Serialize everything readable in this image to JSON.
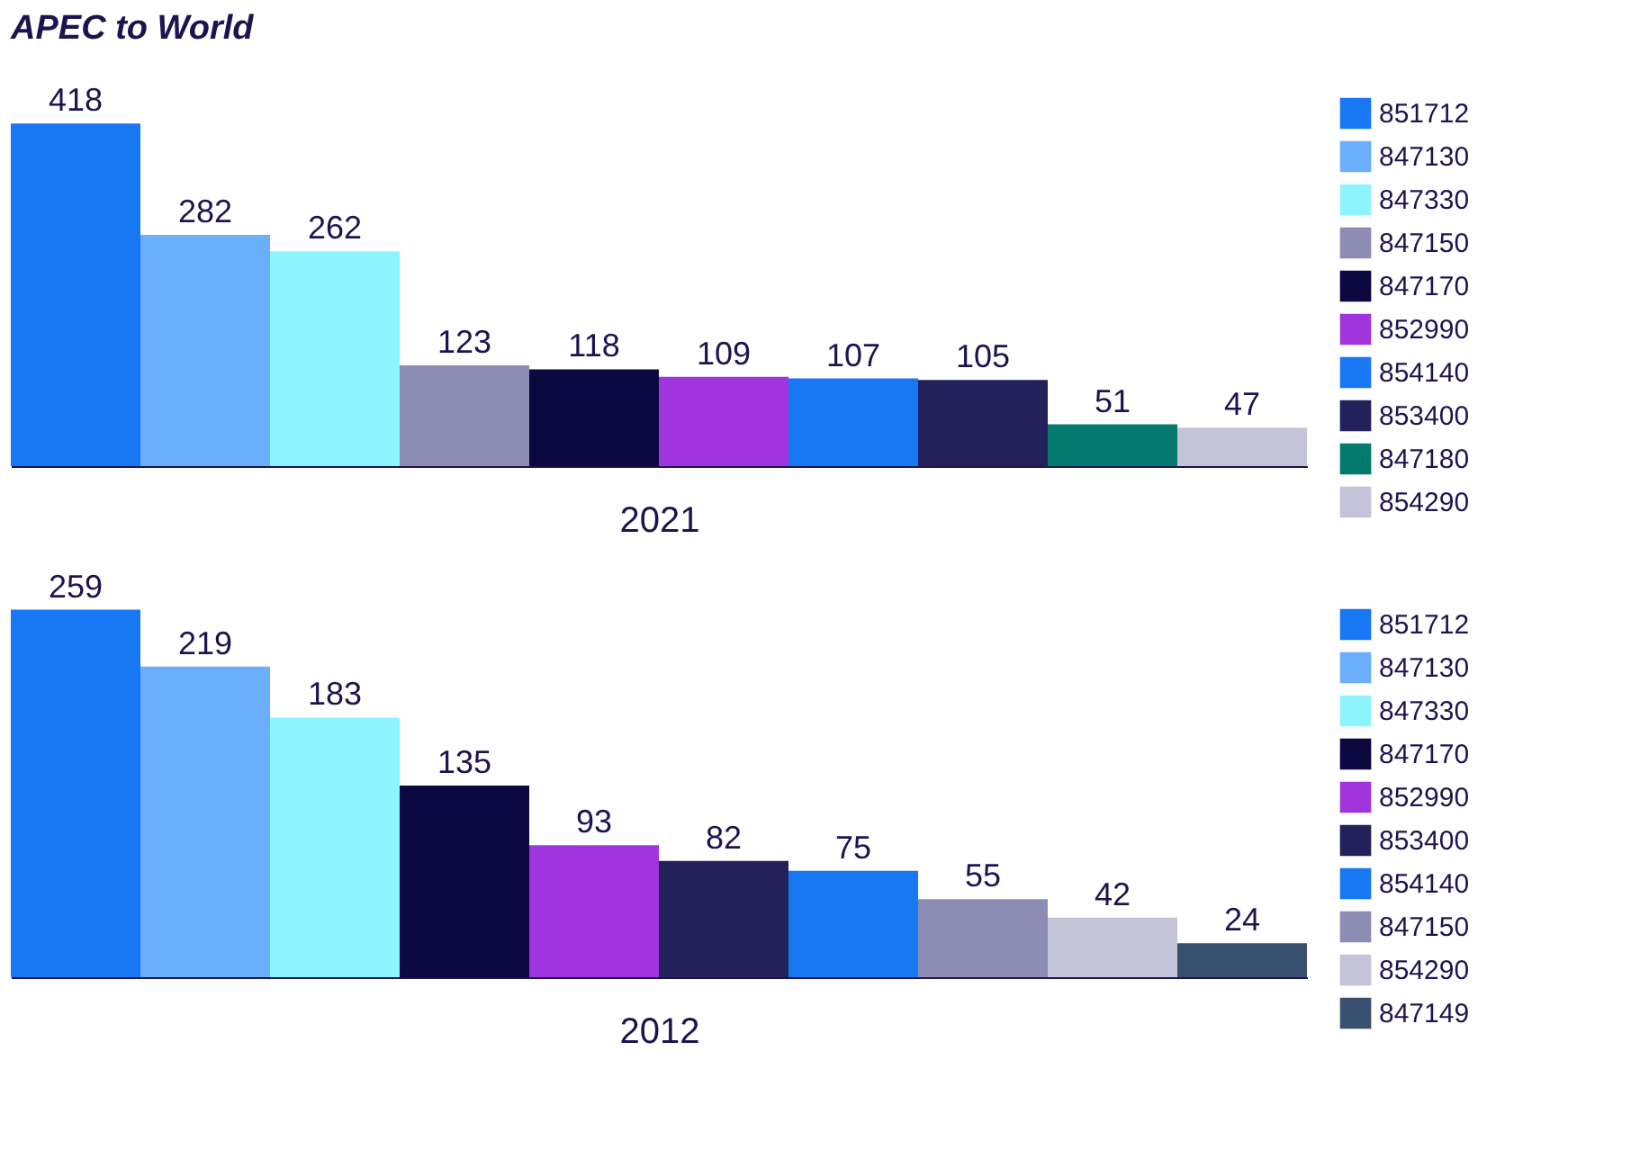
{
  "chart_data": [
    {
      "type": "bar",
      "title": "APEC to World",
      "xlabel": "2021",
      "categories": [
        null,
        null,
        null,
        null,
        null,
        null,
        null,
        null,
        null,
        null
      ],
      "stacked": true,
      "data_labels": true,
      "legend": "right",
      "series": [
        {
          "name": "851712",
          "color": "#1877f2",
          "values": [
            418,
            null,
            null,
            null,
            null,
            null,
            null,
            null,
            null,
            null
          ]
        },
        {
          "name": "847130",
          "color": "#6aaefc",
          "values": [
            null,
            282,
            null,
            null,
            null,
            null,
            null,
            null,
            null,
            null
          ]
        },
        {
          "name": "847330",
          "color": "#8ef4ff",
          "values": [
            null,
            null,
            262,
            null,
            null,
            null,
            null,
            null,
            null,
            null
          ]
        },
        {
          "name": "847150",
          "color": "#8c8cb4",
          "values": [
            null,
            null,
            null,
            123,
            null,
            null,
            null,
            null,
            null,
            null
          ]
        },
        {
          "name": "847170",
          "color": "#0b0840",
          "values": [
            null,
            null,
            null,
            null,
            118,
            null,
            null,
            null,
            null,
            null
          ]
        },
        {
          "name": "852990",
          "color": "#a035de",
          "values": [
            null,
            null,
            null,
            null,
            null,
            109,
            null,
            null,
            null,
            null
          ]
        },
        {
          "name": "854140",
          "color": "#1877f2",
          "values": [
            null,
            null,
            null,
            null,
            null,
            null,
            107,
            null,
            null,
            null
          ]
        },
        {
          "name": "853400",
          "color": "#23215a",
          "values": [
            null,
            null,
            null,
            null,
            null,
            null,
            null,
            105,
            null,
            null
          ]
        },
        {
          "name": "847180",
          "color": "#027a6e",
          "values": [
            null,
            null,
            null,
            null,
            null,
            null,
            null,
            null,
            51,
            null
          ]
        },
        {
          "name": "854290",
          "color": "#c4c4d8",
          "values": [
            null,
            null,
            null,
            null,
            null,
            null,
            null,
            null,
            null,
            47
          ]
        }
      ]
    },
    {
      "type": "bar",
      "xlabel": "2012",
      "categories": [
        null,
        null,
        null,
        null,
        null,
        null,
        null,
        null,
        null,
        null
      ],
      "stacked": true,
      "data_labels": true,
      "legend": "right",
      "series": [
        {
          "name": "851712",
          "color": "#1877f2",
          "values": [
            259,
            null,
            null,
            null,
            null,
            null,
            null,
            null,
            null,
            null
          ]
        },
        {
          "name": "847130",
          "color": "#6aaefc",
          "values": [
            null,
            219,
            null,
            null,
            null,
            null,
            null,
            null,
            null,
            null
          ]
        },
        {
          "name": "847330",
          "color": "#8ef4ff",
          "values": [
            null,
            null,
            183,
            null,
            null,
            null,
            null,
            null,
            null,
            null
          ]
        },
        {
          "name": "847170",
          "color": "#0b0840",
          "values": [
            null,
            null,
            null,
            135,
            null,
            null,
            null,
            null,
            null,
            null
          ]
        },
        {
          "name": "852990",
          "color": "#a035de",
          "values": [
            null,
            null,
            null,
            null,
            93,
            null,
            null,
            null,
            null,
            null
          ]
        },
        {
          "name": "853400",
          "color": "#23215a",
          "values": [
            null,
            null,
            null,
            null,
            null,
            82,
            null,
            null,
            null,
            null
          ]
        },
        {
          "name": "854140",
          "color": "#1877f2",
          "values": [
            null,
            null,
            null,
            null,
            null,
            null,
            75,
            null,
            null,
            null
          ]
        },
        {
          "name": "847150",
          "color": "#8c8cb4",
          "values": [
            null,
            null,
            null,
            null,
            null,
            null,
            null,
            55,
            null,
            null
          ]
        },
        {
          "name": "854290",
          "color": "#c4c4d8",
          "values": [
            null,
            null,
            null,
            null,
            null,
            null,
            null,
            null,
            42,
            null
          ]
        },
        {
          "name": "847149",
          "color": "#3a5070",
          "values": [
            null,
            null,
            null,
            null,
            null,
            null,
            null,
            null,
            null,
            24
          ]
        }
      ]
    }
  ]
}
